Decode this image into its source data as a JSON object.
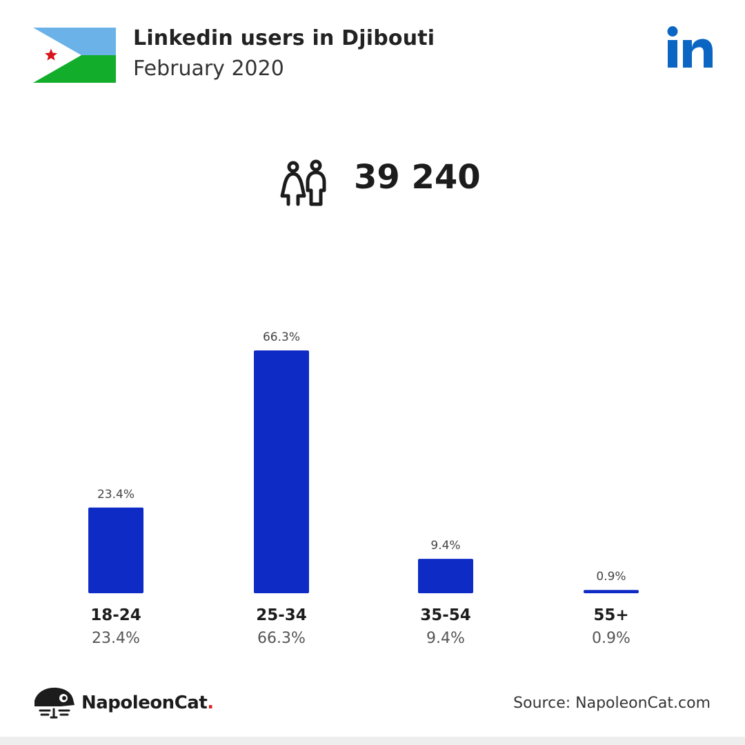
{
  "header": {
    "title": "Linkedin users in Djibouti",
    "subtitle": "February 2020"
  },
  "flag_colors": {
    "top": "#6ab2e7",
    "bottom": "#12ad2b",
    "triangle": "#ffffff",
    "star": "#d7141a"
  },
  "brand_color": "#0a66c2",
  "total_users": "39 240",
  "chart_data": {
    "type": "bar",
    "categories": [
      "18-24",
      "25-34",
      "35-54",
      "55+"
    ],
    "values": [
      23.4,
      66.3,
      9.4,
      0.9
    ],
    "value_labels": [
      "23.4%",
      "66.3%",
      "9.4%",
      "0.9%"
    ],
    "bar_color": "#0f2bc5",
    "title": "",
    "xlabel": "",
    "ylabel": "",
    "ylim": [
      0,
      66.3
    ],
    "grid": false,
    "legend": "none"
  },
  "footer": {
    "brand_name": "NapoleonCat",
    "brand_dot": ".",
    "source": "Source: NapoleonCat.com"
  }
}
